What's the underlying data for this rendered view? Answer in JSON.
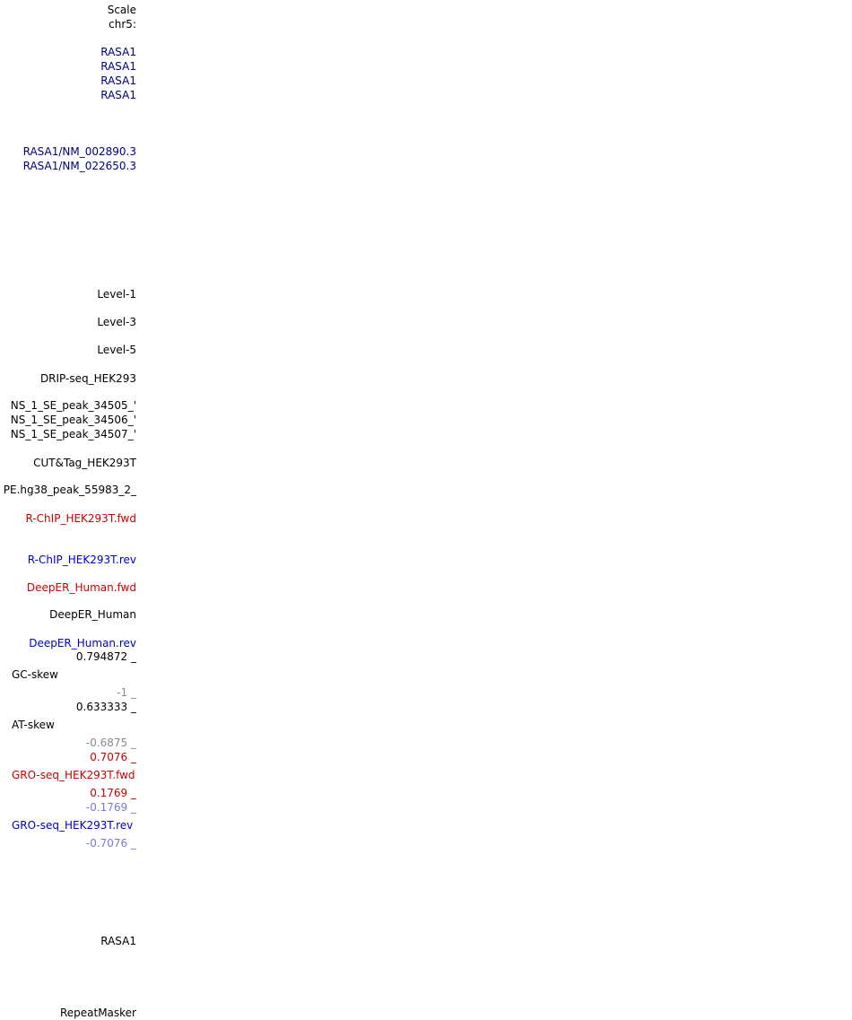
{
  "labels": {
    "scale": "Scale",
    "chr": "chr5:",
    "gene1": "RASA1",
    "gene2": "RASA1",
    "gene3": "RASA1",
    "gene4": "RASA1",
    "tx1": "RASA1/NM_002890.3",
    "tx2": "RASA1/NM_022650.3",
    "level1": "Level-1",
    "level3": "Level-3",
    "level5": "Level-5",
    "drip": "DRIP-seq_HEK293",
    "peak1": "'_NS_1_SE_peak_34505",
    "peak2": "'_NS_1_SE_peak_34506",
    "peak3": "'_NS_1_SE_peak_34507",
    "cuttag": "CUT&Tag_HEK293T",
    "pe_peak": "_2_PE.hg38_peak_55983",
    "rchip_fwd": "R-ChIP_HEK293T.fwd",
    "rchip_rev": "R-ChIP_HEK293T.rev",
    "deeper_fwd": "DeepER_Human.fwd",
    "deeper": "DeepER_Human",
    "deeper_rev": "DeepER_Human.rev",
    "gc_max": "0.794872 _",
    "gc_skew": "GC-skew",
    "gc_min": "-1 _",
    "at_max": "0.633333 _",
    "at_skew": "AT-skew",
    "at_min": "-0.6875 _",
    "gro_fwd_max": "0.7076 _",
    "gro_fwd": "GRO-seq_HEK293T.fwd",
    "gro_fwd_min": "0.1769 _",
    "gro_rev_max": "-0.1769 _",
    "gro_rev": "GRO-seq_HEK293T.rev",
    "gro_rev_min": "-0.7076 _",
    "gene_bottom": "RASA1",
    "repeatmasker": "RepeatMasker"
  },
  "colors": {
    "black": "#000000",
    "navy": "#000080",
    "red": "#cc0000",
    "blue": "#0000cc",
    "gray": "#8a8a8a",
    "light_blue": "#7777dd"
  }
}
